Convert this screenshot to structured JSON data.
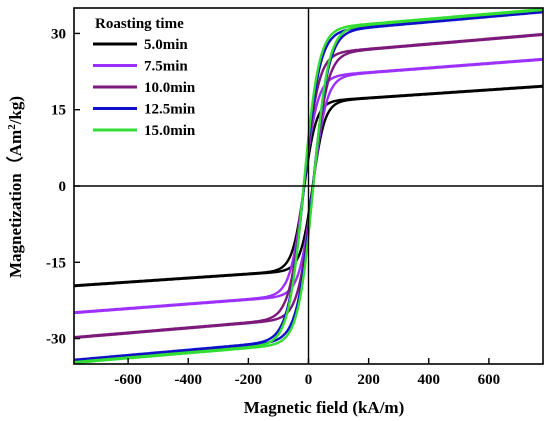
{
  "chart_data": {
    "type": "line",
    "xlabel": "Magnetic field (kA/m)",
    "ylabel_main": "Magnetization（Am",
    "ylabel_sup": "2",
    "ylabel_tail": "/kg)",
    "xlim": [
      -780,
      780
    ],
    "ylim": [
      -35,
      35
    ],
    "xticks": [
      -600,
      -400,
      -200,
      0,
      200,
      400,
      600
    ],
    "yticks": [
      -30,
      -15,
      0,
      15,
      30
    ],
    "legend_title": "Roasting time",
    "legend_position": "top-left",
    "series": [
      {
        "name": "5.0min",
        "color": "#000000",
        "ms": 16.5,
        "hc": 14,
        "a": 40,
        "slope": 0.004
      },
      {
        "name": "7.5min",
        "color": "#9b30ff",
        "ms": 21.4,
        "hc": 15,
        "a": 45,
        "slope": 0.0045
      },
      {
        "name": "10.0min",
        "color": "#7b1a7b",
        "ms": 25.9,
        "hc": 15,
        "a": 48,
        "slope": 0.005
      },
      {
        "name": "12.5min",
        "color": "#1010c8",
        "ms": 30.2,
        "hc": 15,
        "a": 52,
        "slope": 0.0052
      },
      {
        "name": "15.0min",
        "color": "#33dd33",
        "ms": 30.8,
        "hc": 16,
        "a": 50,
        "slope": 0.005
      }
    ]
  }
}
